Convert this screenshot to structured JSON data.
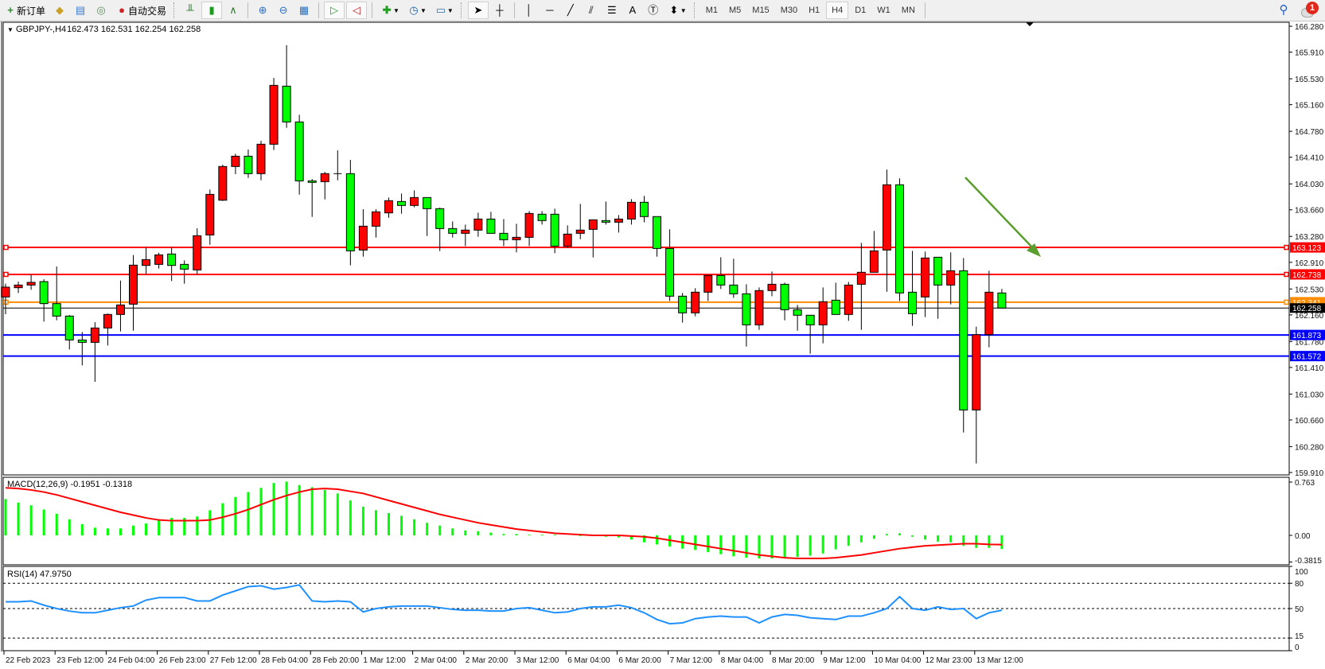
{
  "toolbar": {
    "new_order_label": "新订单",
    "auto_trading_label": "自动交易",
    "timeframes": [
      "M1",
      "M5",
      "M15",
      "M30",
      "H1",
      "H4",
      "D1",
      "W1",
      "MN"
    ],
    "active_timeframe": "H4",
    "notification_count": "1"
  },
  "chart_header": {
    "symbol": "GBPJPY-,H4",
    "ohlc": "162.473 162.531 162.254 162.258"
  },
  "macd_header": "MACD(12,26,9) -0.1951 -0.1318",
  "rsi_header": "RSI(14) 47.9750",
  "colors": {
    "bull_candle": "#ff0000",
    "bear_candle": "#00ff00",
    "macd_histogram": "#00ff00",
    "macd_signal": "#ff0000",
    "rsi_line": "#1e90ff",
    "arrow": "#5a9e2e"
  },
  "chart_data": [
    {
      "type": "candlestick",
      "symbol": "GBPJPY-",
      "timeframe": "H4",
      "ylim": [
        159.91,
        166.28
      ],
      "y_ticks": [
        "166.280",
        "165.910",
        "165.530",
        "165.160",
        "164.780",
        "164.410",
        "164.030",
        "163.660",
        "163.280",
        "162.910",
        "162.530",
        "162.160",
        "161.780",
        "161.410",
        "161.030",
        "160.660",
        "160.280",
        "159.910"
      ],
      "x_tick_labels": [
        "22 Feb 2023",
        "23 Feb 12:00",
        "24 Feb 04:00",
        "26 Feb 23:00",
        "27 Feb 12:00",
        "28 Feb 04:00",
        "28 Feb 20:00",
        "1 Mar 12:00",
        "2 Mar 04:00",
        "2 Mar 20:00",
        "3 Mar 12:00",
        "6 Mar 04:00",
        "6 Mar 20:00",
        "7 Mar 12:00",
        "8 Mar 04:00",
        "8 Mar 20:00",
        "9 Mar 12:00",
        "10 Mar 04:00",
        "12 Mar 23:00",
        "13 Mar 12:00"
      ],
      "x_tick_every_bars": 4,
      "ohlc_fields": [
        "open",
        "high",
        "low",
        "close"
      ],
      "ohlc": [
        [
          162.416,
          162.605,
          162.17,
          162.556
        ],
        [
          162.548,
          162.635,
          162.472,
          162.586
        ],
        [
          162.586,
          162.737,
          162.518,
          162.624
        ],
        [
          162.635,
          162.669,
          162.064,
          162.321
        ],
        [
          162.321,
          162.851,
          162.083,
          162.143
        ],
        [
          162.143,
          162.158,
          161.666,
          161.802
        ],
        [
          161.802,
          161.916,
          161.439,
          161.768
        ],
        [
          161.768,
          162.056,
          161.204,
          161.973
        ],
        [
          161.973,
          162.181,
          161.723,
          162.166
        ],
        [
          162.166,
          162.65,
          161.924,
          162.302
        ],
        [
          162.313,
          163.014,
          161.935,
          162.87
        ],
        [
          162.866,
          163.135,
          162.73,
          162.949
        ],
        [
          162.881,
          163.048,
          162.821,
          163.017
        ],
        [
          163.029,
          163.135,
          162.643,
          162.866
        ],
        [
          162.881,
          162.938,
          162.605,
          162.813
        ],
        [
          162.802,
          163.396,
          162.73,
          163.29
        ],
        [
          163.301,
          163.949,
          163.161,
          163.88
        ],
        [
          163.797,
          164.304,
          163.786,
          164.278
        ],
        [
          164.278,
          164.459,
          164.168,
          164.425
        ],
        [
          164.425,
          164.52,
          164.115,
          164.176
        ],
        [
          164.176,
          164.645,
          164.081,
          164.596
        ],
        [
          164.596,
          165.542,
          164.513,
          165.436
        ],
        [
          165.425,
          166.011,
          164.83,
          164.914
        ],
        [
          164.914,
          165.016,
          163.877,
          164.073
        ],
        [
          164.073,
          164.1,
          163.559,
          164.051
        ],
        [
          164.062,
          164.202,
          163.808,
          164.176
        ],
        [
          164.176,
          164.509,
          164.081,
          164.17
        ],
        [
          164.176,
          164.372,
          162.866,
          163.074
        ],
        [
          163.086,
          163.669,
          162.991,
          163.426
        ],
        [
          163.426,
          163.669,
          163.264,
          163.631
        ],
        [
          163.616,
          163.835,
          163.547,
          163.79
        ],
        [
          163.778,
          163.892,
          163.604,
          163.722
        ],
        [
          163.722,
          163.937,
          163.695,
          163.835
        ],
        [
          163.835,
          163.835,
          163.286,
          163.676
        ],
        [
          163.676,
          163.691,
          163.071,
          163.392
        ],
        [
          163.392,
          163.494,
          163.264,
          163.324
        ],
        [
          163.324,
          163.449,
          163.142,
          163.37
        ],
        [
          163.37,
          163.619,
          163.275,
          163.528
        ],
        [
          163.528,
          163.631,
          163.32,
          163.324
        ],
        [
          163.324,
          163.528,
          163.142,
          163.233
        ],
        [
          163.233,
          163.46,
          163.052,
          163.267
        ],
        [
          163.267,
          163.642,
          163.142,
          163.608
        ],
        [
          163.597,
          163.642,
          163.449,
          163.506
        ],
        [
          163.597,
          163.676,
          163.04,
          163.142
        ],
        [
          163.142,
          163.438,
          163.116,
          163.313
        ],
        [
          163.324,
          163.744,
          163.241,
          163.37
        ],
        [
          163.381,
          163.517,
          162.98,
          163.517
        ],
        [
          163.506,
          163.778,
          163.449,
          163.483
        ],
        [
          163.483,
          163.585,
          163.335,
          163.528
        ],
        [
          163.528,
          163.812,
          163.449,
          163.767
        ],
        [
          163.767,
          163.858,
          163.483,
          163.563
        ],
        [
          163.563,
          163.563,
          162.991,
          163.108
        ],
        [
          163.108,
          163.381,
          162.359,
          162.427
        ],
        [
          162.427,
          162.473,
          162.049,
          162.189
        ],
        [
          162.189,
          162.541,
          162.14,
          162.484
        ],
        [
          162.484,
          162.722,
          162.359,
          162.722
        ],
        [
          162.722,
          162.983,
          162.529,
          162.586
        ],
        [
          162.586,
          162.961,
          162.404,
          162.461
        ],
        [
          162.461,
          162.597,
          161.708,
          162.018
        ],
        [
          162.018,
          162.552,
          161.946,
          162.507
        ],
        [
          162.507,
          162.779,
          162.427,
          162.597
        ],
        [
          162.597,
          162.62,
          162.083,
          162.234
        ],
        [
          162.234,
          162.302,
          161.935,
          162.155
        ],
        [
          162.155,
          162.155,
          161.606,
          162.018
        ],
        [
          162.018,
          162.552,
          161.754,
          162.348
        ],
        [
          162.37,
          162.62,
          162.166,
          162.166
        ],
        [
          162.166,
          162.632,
          162.075,
          162.586
        ],
        [
          162.597,
          163.188,
          161.946,
          162.768
        ],
        [
          162.768,
          163.358,
          162.768,
          163.074
        ],
        [
          163.086,
          164.233,
          162.491,
          164.017
        ],
        [
          164.017,
          164.108,
          162.359,
          162.473
        ],
        [
          162.484,
          163.074,
          162.003,
          162.177
        ],
        [
          162.416,
          163.063,
          162.128,
          162.972
        ],
        [
          162.983,
          162.983,
          162.105,
          162.586
        ],
        [
          162.586,
          163.052,
          162.31,
          162.79
        ],
        [
          162.79,
          162.972,
          160.482,
          160.803
        ],
        [
          160.803,
          161.992,
          160.039,
          161.878
        ],
        [
          161.878,
          162.79,
          161.697,
          162.484
        ],
        [
          162.473,
          162.531,
          162.254,
          162.258
        ]
      ],
      "horizontal_lines": [
        {
          "price": 163.123,
          "label": "163.123",
          "color": "#ff0000"
        },
        {
          "price": 162.738,
          "label": "162.738",
          "color": "#ff0000"
        },
        {
          "price": 162.341,
          "label": "162.341",
          "color": "#ff8c00"
        },
        {
          "price": 161.873,
          "label": "161.873",
          "color": "#0000ff"
        },
        {
          "price": 161.572,
          "label": "161.572",
          "color": "#0000ff"
        }
      ],
      "current_price": {
        "price": 162.258,
        "label": "162.258",
        "color": "#000000"
      },
      "annotation": {
        "type": "arrow",
        "direction": "down-right",
        "color": "#5a9e2e"
      }
    },
    {
      "type": "bar+line",
      "indicator": "MACD(12,26,9)",
      "ylim": [
        -0.3815,
        0.763
      ],
      "y_ticks": [
        "0.763",
        "0.00",
        "-0.3815"
      ],
      "histogram": [
        0.52,
        0.47,
        0.43,
        0.37,
        0.31,
        0.23,
        0.16,
        0.11,
        0.1,
        0.1,
        0.14,
        0.17,
        0.23,
        0.25,
        0.25,
        0.27,
        0.36,
        0.46,
        0.55,
        0.62,
        0.68,
        0.75,
        0.77,
        0.72,
        0.69,
        0.65,
        0.6,
        0.5,
        0.41,
        0.36,
        0.32,
        0.28,
        0.23,
        0.18,
        0.14,
        0.1,
        0.07,
        0.06,
        0.04,
        0.02,
        0.02,
        0.01,
        0.01,
        0.01,
        0.0,
        -0.01,
        -0.01,
        -0.02,
        -0.03,
        -0.06,
        -0.1,
        -0.13,
        -0.16,
        -0.19,
        -0.21,
        -0.24,
        -0.27,
        -0.3,
        -0.32,
        -0.33,
        -0.33,
        -0.32,
        -0.31,
        -0.29,
        -0.26,
        -0.2,
        -0.15,
        -0.1,
        -0.05,
        0.02,
        0.03,
        -0.02,
        -0.06,
        -0.09,
        -0.1,
        -0.15,
        -0.18,
        -0.18,
        -0.1951
      ],
      "signal": [
        0.68,
        0.67,
        0.65,
        0.62,
        0.58,
        0.53,
        0.48,
        0.43,
        0.38,
        0.33,
        0.29,
        0.25,
        0.22,
        0.21,
        0.21,
        0.21,
        0.22,
        0.26,
        0.31,
        0.37,
        0.44,
        0.51,
        0.57,
        0.62,
        0.66,
        0.67,
        0.66,
        0.63,
        0.6,
        0.55,
        0.5,
        0.45,
        0.4,
        0.35,
        0.3,
        0.26,
        0.22,
        0.18,
        0.15,
        0.12,
        0.09,
        0.07,
        0.05,
        0.03,
        0.02,
        0.01,
        0.0,
        0.0,
        0.0,
        -0.01,
        -0.02,
        -0.04,
        -0.07,
        -0.1,
        -0.13,
        -0.16,
        -0.19,
        -0.22,
        -0.25,
        -0.28,
        -0.3,
        -0.32,
        -0.33,
        -0.33,
        -0.33,
        -0.32,
        -0.3,
        -0.28,
        -0.25,
        -0.22,
        -0.19,
        -0.17,
        -0.15,
        -0.14,
        -0.13,
        -0.12,
        -0.12,
        -0.13,
        -0.1318
      ]
    },
    {
      "type": "line",
      "indicator": "RSI(14)",
      "ylim": [
        0,
        100
      ],
      "y_ticks": [
        "100",
        "80",
        "50",
        "15",
        "0"
      ],
      "levels": [
        80,
        50,
        15
      ],
      "values": [
        58,
        58,
        59,
        54,
        50,
        47,
        45,
        45,
        48,
        51,
        53,
        60,
        63,
        63,
        63,
        59,
        59,
        66,
        71,
        76,
        77,
        73,
        75,
        78,
        59,
        58,
        59,
        58,
        46,
        50,
        52,
        53,
        53,
        53,
        51,
        49,
        48,
        48,
        47,
        47,
        50,
        51,
        48,
        45,
        46,
        50,
        52,
        52,
        54,
        51,
        45,
        37,
        32,
        33,
        38,
        40,
        41,
        40,
        40,
        33,
        40,
        43,
        42,
        39,
        38,
        37,
        41,
        41,
        45,
        50,
        64,
        50,
        48,
        52,
        49,
        50,
        38,
        45,
        47.975
      ]
    }
  ]
}
